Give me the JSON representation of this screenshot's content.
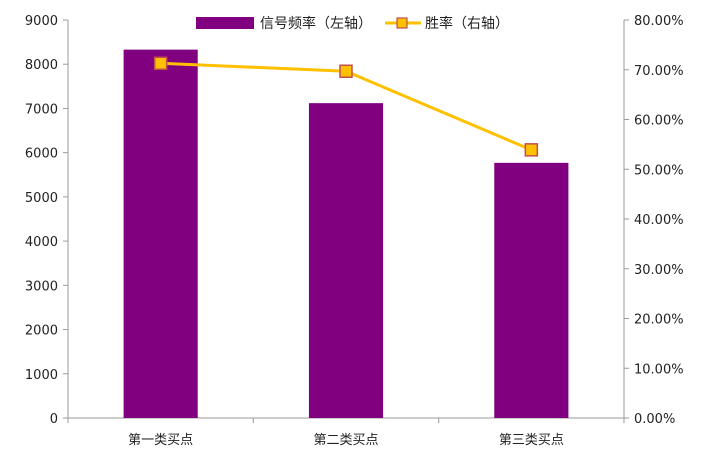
{
  "chart_data": {
    "type": "bar",
    "categories": [
      "第一类买点",
      "第二类买点",
      "第三类买点"
    ],
    "series": [
      {
        "name": "信号频率（左轴）",
        "type": "bar",
        "axis": "left",
        "color": "#800080",
        "values": [
          8330,
          7120,
          5770
        ]
      },
      {
        "name": "胜率（右轴）",
        "type": "line",
        "axis": "right",
        "color": "#FFC000",
        "marker_fill": "#FFC000",
        "marker_stroke": "#C0504D",
        "values": [
          0.713,
          0.697,
          0.539
        ]
      }
    ],
    "y_left": {
      "min": 0,
      "max": 9000,
      "ticks": [
        0,
        1000,
        2000,
        3000,
        4000,
        5000,
        6000,
        7000,
        8000,
        9000
      ],
      "tick_labels": [
        "0",
        "1000",
        "2000",
        "3000",
        "4000",
        "5000",
        "6000",
        "7000",
        "8000",
        "9000"
      ]
    },
    "y_right": {
      "min": 0,
      "max": 0.8,
      "ticks": [
        0,
        0.1,
        0.2,
        0.3,
        0.4,
        0.5,
        0.6,
        0.7,
        0.8
      ],
      "tick_labels": [
        "0.00%",
        "10.00%",
        "20.00%",
        "30.00%",
        "40.00%",
        "50.00%",
        "60.00%",
        "70.00%",
        "80.00%"
      ]
    },
    "grid": false,
    "legend_position": "top-center"
  }
}
